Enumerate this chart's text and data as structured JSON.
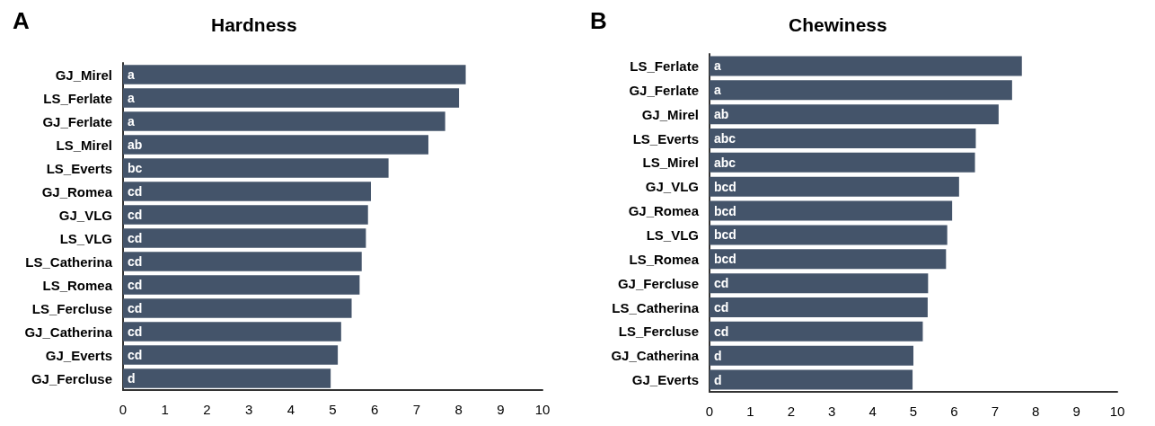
{
  "chart_data": [
    {
      "type": "bar",
      "orientation": "horizontal",
      "title": "Hardness",
      "annotations": [
        "A"
      ],
      "categories": [
        "GJ_Mirel",
        "LS_Ferlate",
        "GJ_Ferlate",
        "LS_Mirel",
        "LS_Everts",
        "GJ_Romea",
        "GJ_VLG",
        "LS_VLG",
        "LS_Catherina",
        "LS_Romea",
        "LS_Fercluse",
        "GJ_Catherina",
        "GJ_Everts",
        "GJ_Fercluse"
      ],
      "values": [
        8.17,
        8.01,
        7.68,
        7.28,
        6.33,
        5.91,
        5.84,
        5.79,
        5.69,
        5.64,
        5.45,
        5.2,
        5.12,
        4.95
      ],
      "value_labels": [
        "a",
        "a",
        "a",
        "ab",
        "bc",
        "cd",
        "cd",
        "cd",
        "cd",
        "cd",
        "cd",
        "cd",
        "cd",
        "d"
      ],
      "color": "#44546a",
      "xlim": [
        0,
        10
      ],
      "xticks": [
        0,
        1,
        2,
        3,
        4,
        5,
        6,
        7,
        8,
        9,
        10
      ],
      "grid": false
    },
    {
      "type": "bar",
      "orientation": "horizontal",
      "title": "Chewiness",
      "annotations": [
        "B"
      ],
      "categories": [
        "LS_Ferlate",
        "GJ_Ferlate",
        "GJ_Mirel",
        "LS_Everts",
        "LS_Mirel",
        "GJ_VLG",
        "GJ_Romea",
        "LS_VLG",
        "LS_Romea",
        "GJ_Fercluse",
        "LS_Catherina",
        "LS_Fercluse",
        "GJ_Catherina",
        "GJ_Everts"
      ],
      "values": [
        7.66,
        7.42,
        7.09,
        6.53,
        6.51,
        6.12,
        5.95,
        5.83,
        5.8,
        5.36,
        5.35,
        5.23,
        5.0,
        4.98
      ],
      "value_labels": [
        "a",
        "a",
        "ab",
        "abc",
        "abc",
        "bcd",
        "bcd",
        "bcd",
        "bcd",
        "cd",
        "cd",
        "cd",
        "d",
        "d"
      ],
      "color": "#44546a",
      "xlim": [
        0,
        10
      ],
      "xticks": [
        0,
        1,
        2,
        3,
        4,
        5,
        6,
        7,
        8,
        9,
        10
      ],
      "grid": false
    }
  ]
}
